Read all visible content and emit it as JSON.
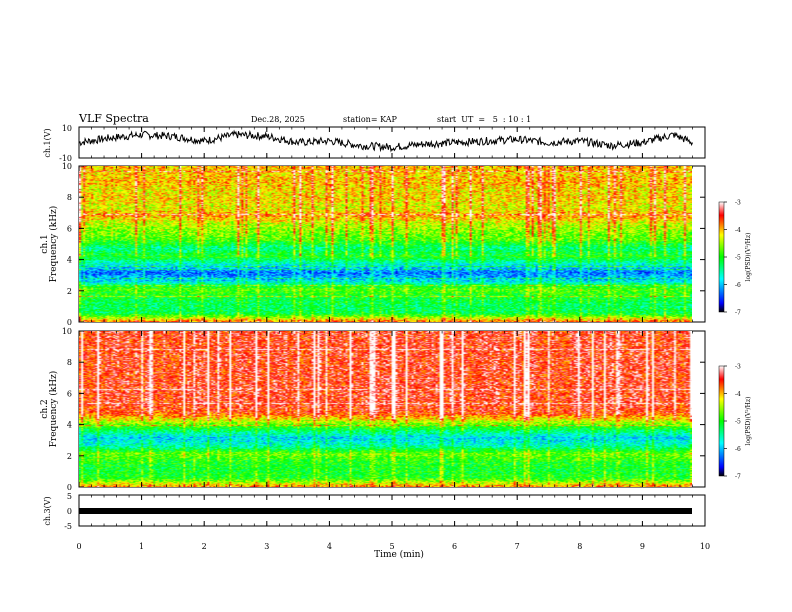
{
  "header": {
    "title": "VLF Spectra",
    "date": "Dec.28, 2025",
    "station": "station= KAP",
    "start_ut": "start  UT  =   5  : 10 : 1"
  },
  "panels": {
    "ch1_wave": {
      "ylabel": "ch.1(V)",
      "ytick_top": "10",
      "ytick_bottom": "-10"
    },
    "ch1_spec": {
      "ylabel_line1": "ch.1",
      "ylabel_line2": "Frequency (kHz)"
    },
    "ch2_spec": {
      "ylabel_line1": "ch.2",
      "ylabel_line2": "Frequency (kHz)"
    },
    "ch3_wave": {
      "ylabel": "ch.3(V)",
      "ytick_top": "5",
      "ytick_mid": "0",
      "ytick_bottom": "-5"
    }
  },
  "colorbar": {
    "label": "log(PSD)(V²/Hz)",
    "ticks": [
      "-3",
      "-4",
      "-5",
      "-6",
      "-7"
    ]
  },
  "chart_data": [
    {
      "type": "line",
      "title": "ch.1 waveform",
      "xlabel": "Time (min)",
      "ylabel": "ch.1(V)",
      "xlim": [
        0,
        10
      ],
      "ylim": [
        -10,
        10
      ],
      "x": [
        0,
        0.5,
        1,
        1.5,
        2,
        2.5,
        3,
        3.5,
        4,
        4.5,
        5,
        5.5,
        6,
        6.5,
        7,
        7.5,
        8,
        8.5,
        9,
        9.5,
        9.8
      ],
      "values": [
        0,
        3,
        5,
        4,
        1,
        5,
        4,
        0,
        1,
        -2,
        -3,
        -1,
        0,
        1,
        2,
        0,
        1,
        -2,
        0,
        5,
        0
      ]
    },
    {
      "type": "heatmap",
      "title": "ch.1 spectrogram",
      "xlabel": "Time (min)",
      "ylabel": "Frequency (kHz)",
      "xlim": [
        0,
        10
      ],
      "ylim": [
        0,
        10
      ],
      "data_extent_min": 9.8,
      "yticks": [
        "0",
        "2",
        "4",
        "6",
        "8",
        "10"
      ],
      "clim": [
        -7,
        -3
      ],
      "freq_kHz": [
        0.25,
        0.75,
        1.25,
        1.75,
        2.25,
        2.75,
        3.25,
        3.75,
        4.25,
        4.75,
        5.25,
        5.75,
        6.25,
        6.75,
        7.25,
        7.75,
        8.25,
        8.75,
        9.25,
        9.75
      ],
      "log_psd_profile": [
        -3.8,
        -5.2,
        -5.3,
        -5.1,
        -4.8,
        -5.9,
        -6.3,
        -5.7,
        -5.0,
        -5.4,
        -4.8,
        -4.6,
        -4.4,
        -3.9,
        -4.3,
        -4.1,
        -4.2,
        -4.0,
        -4.1,
        -4.0
      ]
    },
    {
      "type": "heatmap",
      "title": "ch.2 spectrogram",
      "xlabel": "Time (min)",
      "ylabel": "Frequency (kHz)",
      "xlim": [
        0,
        10
      ],
      "ylim": [
        0,
        10
      ],
      "data_extent_min": 9.8,
      "yticks": [
        "0",
        "2",
        "4",
        "6",
        "8",
        "10"
      ],
      "clim": [
        -7,
        -3
      ],
      "freq_kHz": [
        0.25,
        0.75,
        1.25,
        1.75,
        2.25,
        2.75,
        3.25,
        3.75,
        4.25,
        4.75,
        5.25,
        5.75,
        6.25,
        6.75,
        7.25,
        7.75,
        8.25,
        8.75,
        9.25,
        9.75
      ],
      "log_psd_profile": [
        -3.9,
        -5.0,
        -5.1,
        -5.0,
        -4.7,
        -5.6,
        -5.9,
        -5.2,
        -4.4,
        -3.6,
        -3.5,
        -3.5,
        -3.5,
        -3.5,
        -3.5,
        -3.5,
        -3.5,
        -3.5,
        -3.5,
        -3.5
      ]
    },
    {
      "type": "line",
      "title": "ch.3 waveform",
      "xlabel": "Time (min)",
      "ylabel": "ch.3(V)",
      "xlim": [
        0,
        10
      ],
      "ylim": [
        -5,
        5
      ],
      "x": [
        0,
        9.8
      ],
      "values": [
        0,
        0
      ]
    }
  ],
  "time_axis": {
    "label": "Time (min)",
    "ticks": [
      "0",
      "1",
      "2",
      "3",
      "4",
      "5",
      "6",
      "7",
      "8",
      "9",
      "10"
    ]
  }
}
